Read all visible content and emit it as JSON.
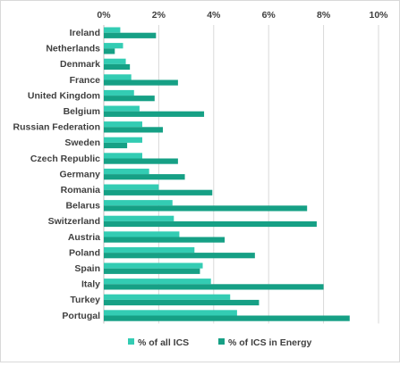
{
  "chart_data": {
    "type": "bar",
    "orientation": "horizontal",
    "title": "",
    "xlabel": "",
    "ylabel": "",
    "xlim": [
      0,
      10
    ],
    "x_ticks": [
      "0%",
      "2%",
      "4%",
      "6%",
      "8%",
      "10%"
    ],
    "x_axis_position": "top",
    "grid": true,
    "legend_position": "bottom",
    "categories": [
      "Ireland",
      "Netherlands",
      "Denmark",
      "France",
      "United Kingdom",
      "Belgium",
      "Russian Federation",
      "Sweden",
      "Czech Republic",
      "Germany",
      "Romania",
      "Belarus",
      "Switzerland",
      "Austria",
      "Poland",
      "Spain",
      "Italy",
      "Turkey",
      "Portugal"
    ],
    "series": [
      {
        "name": "% of all ICS",
        "color": "#33ccb3",
        "values": [
          0.6,
          0.7,
          0.8,
          1.0,
          1.1,
          1.3,
          1.4,
          1.4,
          1.4,
          1.65,
          2.0,
          2.5,
          2.55,
          2.75,
          3.3,
          3.6,
          3.9,
          4.6,
          4.85
        ]
      },
      {
        "name": "% of ICS in Energy",
        "color": "#16a085",
        "values": [
          1.9,
          0.4,
          0.95,
          2.7,
          1.85,
          3.65,
          2.15,
          0.85,
          2.7,
          2.95,
          3.95,
          7.4,
          7.75,
          4.4,
          5.5,
          3.5,
          8.0,
          5.65,
          8.95
        ]
      }
    ]
  }
}
